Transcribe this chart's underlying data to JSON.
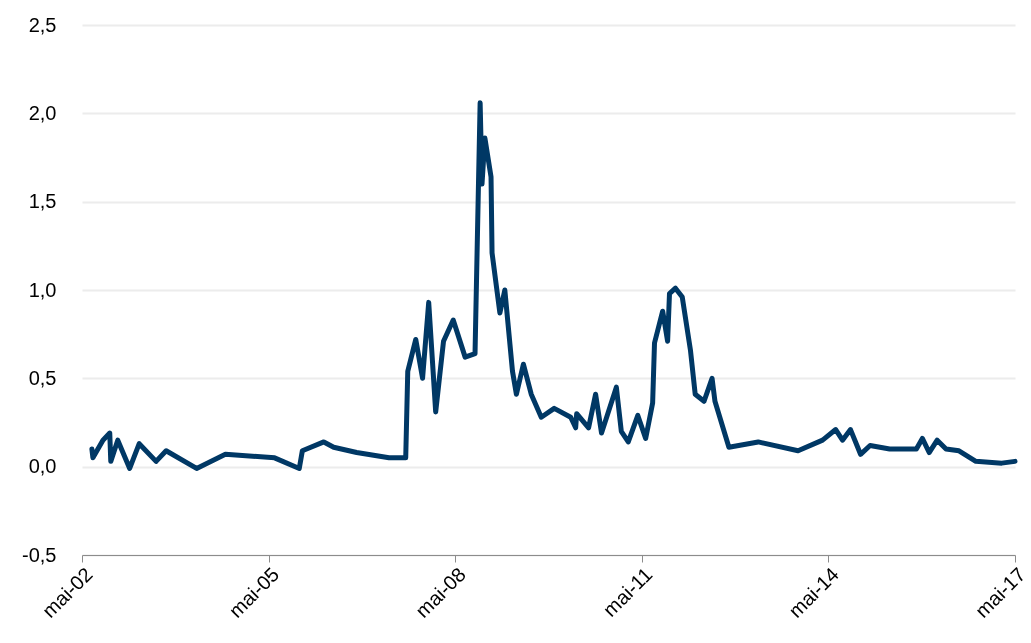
{
  "chart_data": {
    "type": "line",
    "x": [
      "2002-06-28",
      "2002-07-04",
      "2002-09-01",
      "2002-10-11",
      "2002-10-17",
      "2002-11-27",
      "2003-02-05",
      "2003-04-02",
      "2003-07-10",
      "2003-09-07",
      "2004-03-04",
      "2004-08-20",
      "2005-06-05",
      "2005-10-28",
      "2005-11-15",
      "2006-03-21",
      "2006-05-18",
      "2006-09-30",
      "2007-04-08",
      "2007-07-15",
      "2007-07-27",
      "2007-09-12",
      "2007-10-22",
      "2007-11-27",
      "2008-01-07",
      "2008-02-22",
      "2008-04-19",
      "2008-06-28",
      "2008-08-25",
      "2008-09-24",
      "2008-10-05",
      "2008-10-22",
      "2008-11-27",
      "2008-12-03",
      "2009-01-18",
      "2009-02-16",
      "2009-04-02",
      "2009-04-25",
      "2009-06-05",
      "2009-07-21",
      "2009-09-18",
      "2009-12-03",
      "2010-03-10",
      "2010-04-08",
      "2010-04-14",
      "2010-06-23",
      "2010-08-03",
      "2010-09-07",
      "2010-12-03",
      "2011-01-01",
      "2011-02-11",
      "2011-04-08",
      "2011-05-24",
      "2011-07-04",
      "2011-07-15",
      "2011-09-01",
      "2011-09-30",
      "2011-10-11",
      "2011-11-15",
      "2011-12-25",
      "2012-02-11",
      "2012-03-10",
      "2012-05-01",
      "2012-06-17",
      "2012-07-04",
      "2012-09-24",
      "2013-03-15",
      "2013-11-04",
      "2014-03-28",
      "2014-06-13",
      "2014-07-23",
      "2014-09-08",
      "2014-11-06",
      "2015-01-01",
      "2015-04-26",
      "2015-09-30",
      "2015-11-04",
      "2015-12-14",
      "2016-01-30",
      "2016-03-22",
      "2016-06-06",
      "2016-09-13",
      "2017-02-12",
      "2017-05-01"
    ],
    "series": [
      {
        "color": "#003865",
        "values": [
          0.1,
          0.05,
          0.15,
          0.19,
          0.03,
          0.15,
          -0.01,
          0.13,
          0.03,
          0.09,
          -0.01,
          0.07,
          0.05,
          -0.01,
          0.09,
          0.14,
          0.11,
          0.08,
          0.05,
          0.05,
          0.54,
          0.72,
          0.5,
          0.93,
          0.31,
          0.71,
          0.83,
          0.62,
          0.64,
          2.06,
          1.6,
          1.86,
          1.64,
          1.21,
          0.87,
          1.0,
          0.54,
          0.41,
          0.58,
          0.41,
          0.28,
          0.33,
          0.28,
          0.22,
          0.3,
          0.22,
          0.41,
          0.19,
          0.45,
          0.2,
          0.14,
          0.29,
          0.16,
          0.36,
          0.7,
          0.88,
          0.71,
          0.98,
          1.01,
          0.96,
          0.66,
          0.41,
          0.37,
          0.5,
          0.37,
          0.11,
          0.14,
          0.09,
          0.15,
          0.21,
          0.15,
          0.21,
          0.07,
          0.12,
          0.1,
          0.1,
          0.16,
          0.08,
          0.15,
          0.1,
          0.09,
          0.03,
          0.02,
          0.03
        ]
      }
    ],
    "xlim": [
      "2002-05",
      "2017-05"
    ],
    "xticks": [
      {
        "value": "2002-05",
        "label": "mai-02"
      },
      {
        "value": "2005-05",
        "label": "mai-05"
      },
      {
        "value": "2008-05",
        "label": "mai-08"
      },
      {
        "value": "2011-05",
        "label": "mai-11"
      },
      {
        "value": "2014-05",
        "label": "mai-14"
      },
      {
        "value": "2017-05",
        "label": "mai-17"
      }
    ],
    "ylim": [
      -0.5,
      2.5
    ],
    "yticks": [
      {
        "value": -0.5,
        "label": "-0,5"
      },
      {
        "value": 0,
        "label": "0,0"
      },
      {
        "value": 0.5,
        "label": "0,5"
      },
      {
        "value": 1,
        "label": "1,0"
      },
      {
        "value": 1.5,
        "label": "1,5"
      },
      {
        "value": 2,
        "label": "2,0"
      },
      {
        "value": 2.5,
        "label": "2,5"
      }
    ],
    "grid": "y",
    "line_style": "solid",
    "marker": "none"
  }
}
